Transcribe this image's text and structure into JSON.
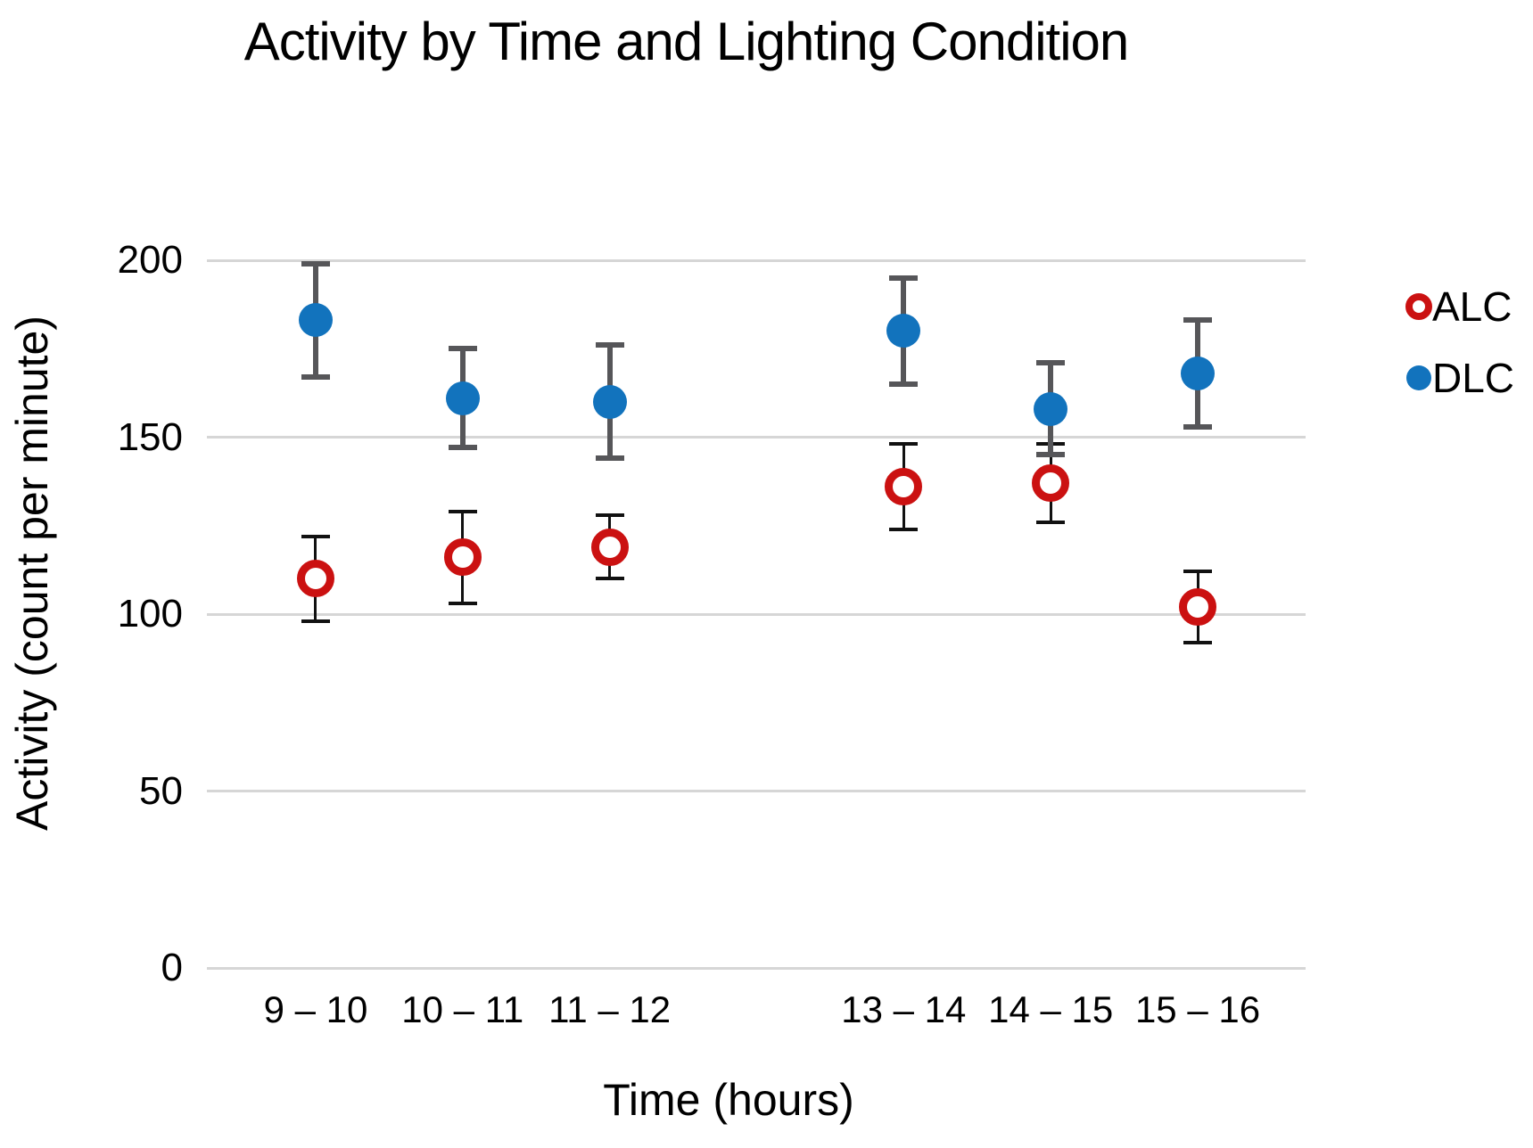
{
  "chart_data": {
    "type": "scatter",
    "title": "Activity by Time and Lighting Condition",
    "xlabel": "Time (hours)",
    "ylabel": "Activity (count per minute)",
    "ylim": [
      0,
      200
    ],
    "yticks": [
      0,
      50,
      100,
      150,
      200
    ],
    "grid": true,
    "gridline_color": "#d6d6d6",
    "background_color": "#ffffff",
    "text_color": "#000000",
    "legend_position": "right",
    "categories": [
      "9 – 10",
      "10 – 11",
      "11 – 12",
      "13 – 14",
      "14 – 15",
      "15 – 16"
    ],
    "category_slots": [
      0,
      1,
      2,
      4,
      5,
      6
    ],
    "series": [
      {
        "name": "ALC",
        "marker": "open-circle",
        "color": "#cb1111",
        "error_bar_color": "#111111",
        "values": [
          110,
          116,
          119,
          136,
          137,
          102
        ],
        "errors": [
          12,
          13,
          9,
          12,
          11,
          10
        ]
      },
      {
        "name": "DLC",
        "marker": "filled-circle",
        "color": "#1273bd",
        "error_bar_color": "#565659",
        "values": [
          183,
          161,
          160,
          180,
          158,
          168
        ],
        "errors": [
          16,
          14,
          16,
          15,
          13,
          15
        ]
      }
    ]
  }
}
